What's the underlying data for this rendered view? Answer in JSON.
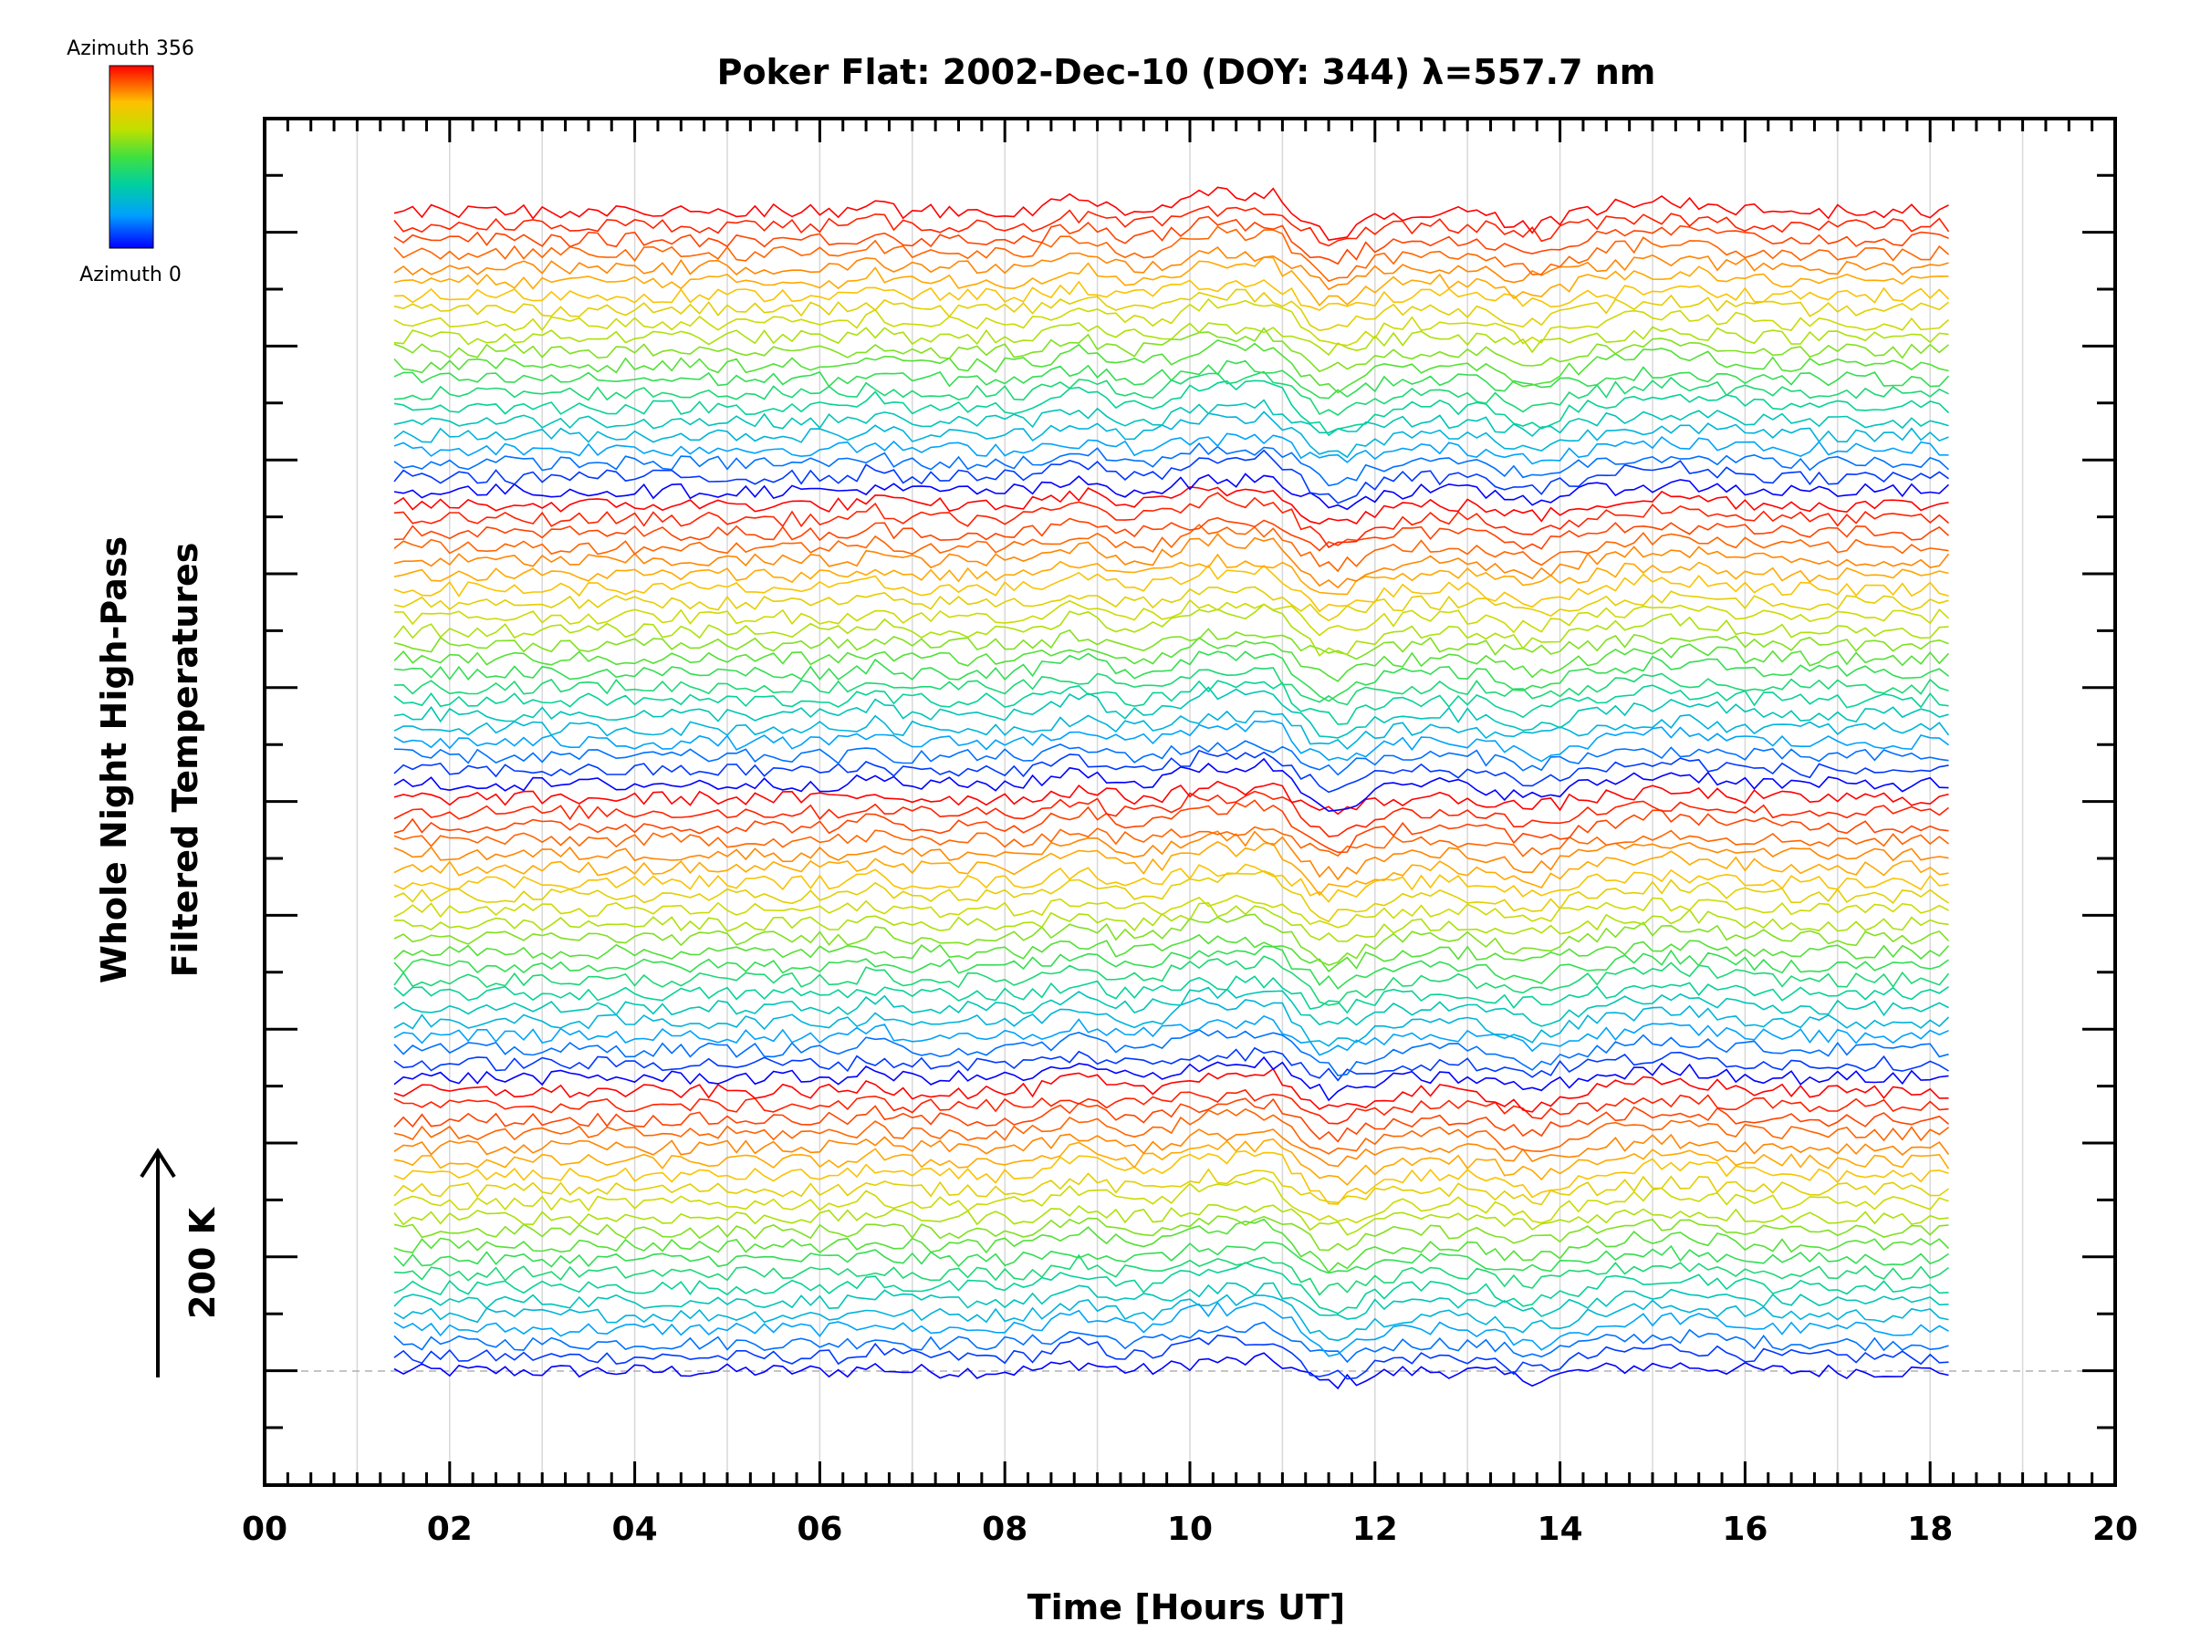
{
  "chart_data": {
    "type": "line",
    "title": "Poker Flat: 2002-Dec-10 (DOY: 344) λ=557.7 nm",
    "xlabel": "Time [Hours UT]",
    "ylabel_line1": "Whole Night High-Pass",
    "ylabel_line2": "Filtered Temperatures",
    "xlim": [
      0,
      20
    ],
    "x_tick_labels": [
      "00",
      "02",
      "04",
      "06",
      "08",
      "10",
      "12",
      "14",
      "16",
      "18",
      "20"
    ],
    "x_ticks": [
      0,
      2,
      4,
      6,
      8,
      10,
      12,
      14,
      16,
      18,
      20
    ],
    "x_minor_step": 0.25,
    "vertical_grid_step_hours": 1,
    "grid": true,
    "data_x_range": [
      1.4,
      18.2
    ],
    "series_count": 84,
    "series_colormap": "rainbow (azimuth 0 = blue, azimuth 356 = red)",
    "azimuth_cycle_period": 21,
    "common_features_hours": [
      8.8,
      10.2,
      10.9,
      11.4,
      13.6,
      15.2
    ],
    "scale_bar": {
      "label": "200 K",
      "direction": "up"
    },
    "colorbar": {
      "top_label": "Azimuth 356",
      "bottom_label": "Azimuth 0",
      "colors": [
        "#0000ff",
        "#00a0ff",
        "#00d0a0",
        "#40e040",
        "#c0e000",
        "#ffc000",
        "#ff6000",
        "#ff0000"
      ]
    },
    "baseline_style": "dashed gray"
  }
}
